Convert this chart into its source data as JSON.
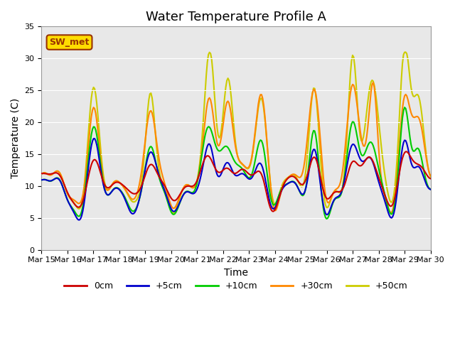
{
  "title": "Water Temperature Profile A",
  "xlabel": "Time",
  "ylabel": "Temperature (C)",
  "ylim": [
    0,
    35
  ],
  "series_labels": [
    "0cm",
    "+5cm",
    "+10cm",
    "+30cm",
    "+50cm"
  ],
  "series_colors": [
    "#cc0000",
    "#0000cc",
    "#00cc00",
    "#ff8800",
    "#cccc00"
  ],
  "series_linewidths": [
    1.5,
    1.5,
    1.5,
    1.5,
    1.5
  ],
  "legend_label": "SW_met",
  "legend_box_color": "#ffdd00",
  "legend_box_edge": "#993300",
  "plot_bg_color": "#e8e8e8",
  "n_points": 360,
  "title_fontsize": 13,
  "axis_fontsize": 10,
  "tick_fontsize": 8,
  "xtick_labels": [
    "Mar 15",
    "Mar 16",
    "Mar 17",
    "Mar 18",
    "Mar 19",
    "Mar 20",
    "Mar 21",
    "Mar 22",
    "Mar 23",
    "Mar 24",
    "Mar 25",
    "Mar 26",
    "Mar 27",
    "Mar 28",
    "Mar 29",
    "Mar 30"
  ],
  "yticks": [
    0,
    5,
    10,
    15,
    20,
    25,
    30,
    35
  ],
  "grid_color": "#ffffff",
  "grid_alpha": 1.0
}
